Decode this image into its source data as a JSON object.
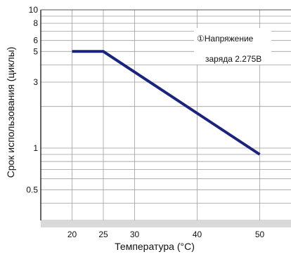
{
  "chart_data": {
    "type": "line",
    "title": "",
    "xlabel": "Температура (°C)",
    "ylabel": "Срок использования (циклы)",
    "xlim": [
      15,
      55
    ],
    "ylim": [
      0.3,
      10
    ],
    "y_scale": "log",
    "grid": true,
    "x_ticks": [
      20,
      25,
      30,
      40,
      50
    ],
    "x_tick_labels": [
      "20",
      "25",
      "30",
      "40",
      "50"
    ],
    "y_ticks": [
      0.5,
      1,
      3,
      5,
      6,
      8,
      10
    ],
    "y_tick_labels": [
      "0.5",
      "1",
      "3",
      "5",
      "6",
      "8",
      "10"
    ],
    "series": [
      {
        "color": "#1a237e",
        "x": [
          20,
          25,
          50
        ],
        "y": [
          5,
          5,
          0.9
        ]
      }
    ],
    "annotations": [
      {
        "line1": "①Напряжение",
        "line2": "заряда 2.275В"
      }
    ]
  }
}
